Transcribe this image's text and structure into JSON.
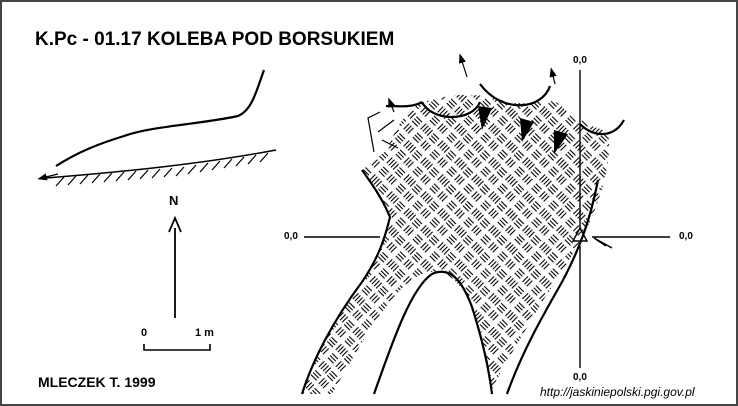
{
  "title": "K.Pc - 01.17  KOLEBA POD BORSUKIEM",
  "north_label": "N",
  "scale": {
    "start": "0",
    "end": "1 m"
  },
  "author": "MLECZEK T. 1999",
  "source_url": "http://jaskiniepolski.pgi.gov.pl",
  "levels": {
    "top": "0,0",
    "left": "0,0",
    "right": "0,0",
    "bottom": "0,0"
  },
  "colors": {
    "ink": "#000000",
    "background": "#ffffff",
    "frame": "#444444"
  }
}
